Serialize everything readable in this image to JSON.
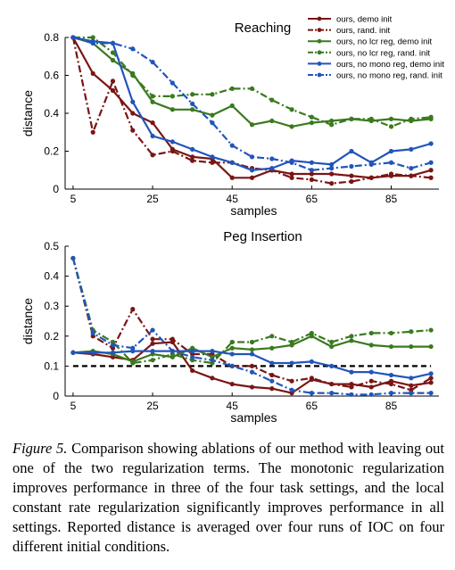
{
  "chart_data": [
    {
      "type": "line",
      "title": "Reaching",
      "xlabel": "samples",
      "ylabel": "distance",
      "xlim": [
        3,
        97
      ],
      "ylim": [
        0,
        0.8
      ],
      "xticks": [
        "5",
        "25",
        "45",
        "65",
        "85"
      ],
      "xtick_values": [
        5,
        25,
        45,
        65,
        85
      ],
      "yticks": [
        "0",
        "0.2",
        "0.4",
        "0.6",
        "0.8"
      ],
      "ytick_values": [
        0,
        0.2,
        0.4,
        0.6,
        0.8
      ],
      "legend_position": "top-right",
      "x": [
        5,
        10,
        15,
        20,
        25,
        30,
        35,
        40,
        45,
        50,
        55,
        60,
        65,
        70,
        75,
        80,
        85,
        90,
        95
      ],
      "series": [
        {
          "name": "ours, demo init",
          "color": "#7a1515",
          "dash": "solid",
          "values": [
            0.8,
            0.61,
            0.52,
            0.4,
            0.35,
            0.21,
            0.17,
            0.16,
            0.06,
            0.06,
            0.1,
            0.08,
            0.08,
            0.08,
            0.07,
            0.06,
            0.07,
            0.07,
            0.1
          ]
        },
        {
          "name": "ours, rand. init",
          "color": "#7a1515",
          "dash": "dashdot",
          "values": [
            0.8,
            0.3,
            0.57,
            0.31,
            0.18,
            0.2,
            0.15,
            0.14,
            0.14,
            0.11,
            0.1,
            0.06,
            0.05,
            0.03,
            0.04,
            0.06,
            0.08,
            0.07,
            0.06
          ]
        },
        {
          "name": "ours, no lcr reg, demo init",
          "color": "#3a7a1e",
          "dash": "solid",
          "values": [
            0.8,
            0.77,
            0.68,
            0.61,
            0.46,
            0.42,
            0.42,
            0.39,
            0.44,
            0.34,
            0.36,
            0.33,
            0.35,
            0.36,
            0.37,
            0.36,
            0.37,
            0.36,
            0.37
          ]
        },
        {
          "name": "ours, no lcr reg, rand. init",
          "color": "#3a7a1e",
          "dash": "dashdot",
          "values": [
            0.8,
            0.8,
            0.72,
            0.6,
            0.49,
            0.49,
            0.5,
            0.5,
            0.53,
            0.53,
            0.47,
            0.42,
            0.38,
            0.34,
            0.37,
            0.37,
            0.33,
            0.37,
            0.38
          ]
        },
        {
          "name": "ours, no mono reg, demo init",
          "color": "#2255bb",
          "dash": "solid",
          "values": [
            0.8,
            0.78,
            0.77,
            0.46,
            0.28,
            0.25,
            0.21,
            0.17,
            0.14,
            0.1,
            0.11,
            0.15,
            0.14,
            0.13,
            0.2,
            0.14,
            0.2,
            0.21,
            0.24
          ]
        },
        {
          "name": "ours, no mono reg, rand. init",
          "color": "#2255bb",
          "dash": "dashdot",
          "values": [
            0.8,
            0.77,
            0.77,
            0.74,
            0.67,
            0.56,
            0.45,
            0.35,
            0.23,
            0.17,
            0.16,
            0.14,
            0.1,
            0.11,
            0.12,
            0.13,
            0.14,
            0.11,
            0.14
          ]
        }
      ]
    },
    {
      "type": "line",
      "title": "Peg Insertion",
      "xlabel": "samples",
      "ylabel": "distance",
      "xlim": [
        3,
        97
      ],
      "ylim": [
        0,
        0.5
      ],
      "xticks": [
        "5",
        "25",
        "45",
        "65",
        "85"
      ],
      "xtick_values": [
        5,
        25,
        45,
        65,
        85
      ],
      "yticks": [
        "0",
        "0.1",
        "0.2",
        "0.3",
        "0.4",
        "0.5"
      ],
      "ytick_values": [
        0,
        0.1,
        0.2,
        0.3,
        0.4,
        0.5
      ],
      "reference_line": {
        "y": 0.1,
        "color": "#000000",
        "dash": "dashed"
      },
      "x": [
        5,
        10,
        15,
        20,
        25,
        30,
        35,
        40,
        45,
        50,
        55,
        60,
        65,
        70,
        75,
        80,
        85,
        90,
        95
      ],
      "series": [
        {
          "name": "ours, demo init",
          "color": "#7a1515",
          "dash": "solid",
          "values": [
            0.145,
            0.14,
            0.13,
            0.12,
            0.175,
            0.18,
            0.085,
            0.06,
            0.04,
            0.03,
            0.025,
            0.01,
            0.055,
            0.04,
            0.04,
            0.03,
            0.05,
            0.035,
            0.045
          ]
        },
        {
          "name": "ours, rand. init",
          "color": "#7a1515",
          "dash": "dashdot",
          "values": [
            0.46,
            0.2,
            0.16,
            0.29,
            0.19,
            0.19,
            0.14,
            0.14,
            0.1,
            0.1,
            0.07,
            0.05,
            0.06,
            0.04,
            0.03,
            0.05,
            0.04,
            0.02,
            0.06
          ]
        },
        {
          "name": "ours, no lcr reg, demo init",
          "color": "#3a7a1e",
          "dash": "solid",
          "values": [
            0.145,
            0.15,
            0.14,
            0.115,
            0.14,
            0.13,
            0.16,
            0.13,
            0.16,
            0.155,
            0.16,
            0.17,
            0.2,
            0.165,
            0.185,
            0.17,
            0.165,
            0.165,
            0.165
          ]
        },
        {
          "name": "ours, no lcr reg, rand. init",
          "color": "#3a7a1e",
          "dash": "dashdot",
          "values": [
            0.46,
            0.22,
            0.18,
            0.11,
            0.12,
            0.14,
            0.12,
            0.11,
            0.18,
            0.18,
            0.2,
            0.18,
            0.21,
            0.18,
            0.2,
            0.21,
            0.21,
            0.215,
            0.22
          ]
        },
        {
          "name": "ours, no mono reg, demo init",
          "color": "#2255bb",
          "dash": "solid",
          "values": [
            0.145,
            0.145,
            0.145,
            0.15,
            0.15,
            0.15,
            0.15,
            0.15,
            0.14,
            0.14,
            0.11,
            0.11,
            0.115,
            0.1,
            0.08,
            0.08,
            0.07,
            0.06,
            0.075
          ]
        },
        {
          "name": "ours, no mono reg, rand. init",
          "color": "#2255bb",
          "dash": "dashdot",
          "values": [
            0.46,
            0.21,
            0.17,
            0.16,
            0.22,
            0.15,
            0.13,
            0.12,
            0.1,
            0.08,
            0.05,
            0.02,
            0.01,
            0.01,
            0.005,
            0.005,
            0.01,
            0.01,
            0.01
          ]
        }
      ]
    }
  ],
  "caption": {
    "label": "Figure 5.",
    "text": " Comparison showing ablations of our method with leaving out one of the two regularization terms. The monotonic regularization improves performance in three of the four task settings, and the local constant rate regularization significantly improves performance in all settings. Reported distance is averaged over four runs of IOC on four different initial conditions."
  }
}
